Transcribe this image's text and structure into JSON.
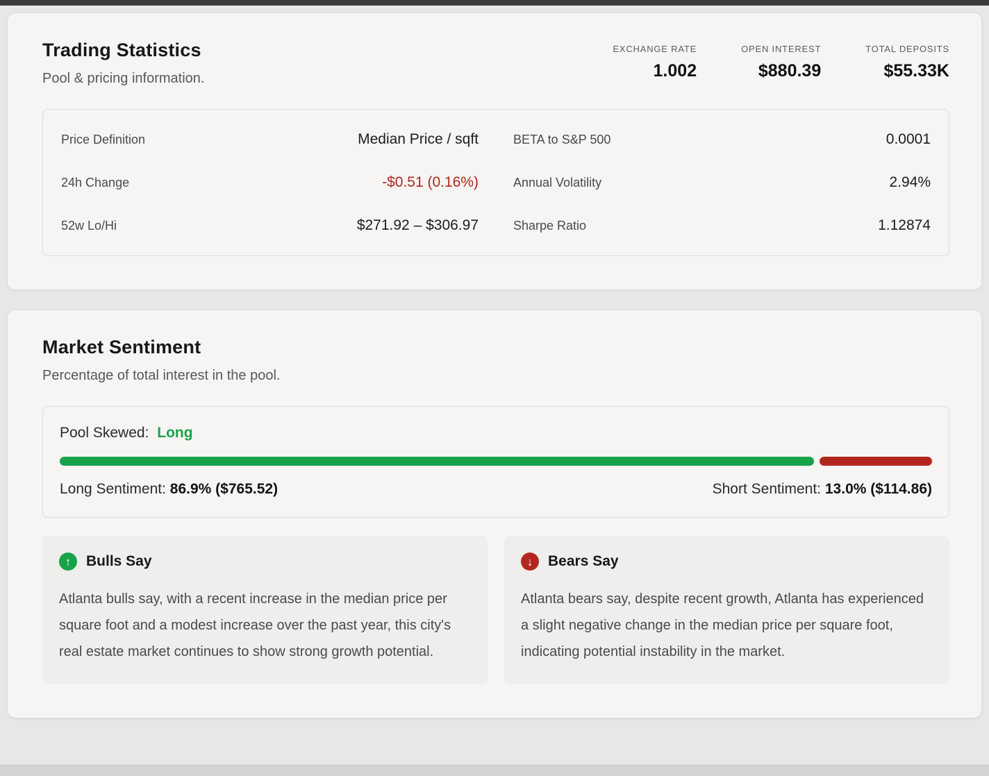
{
  "colors": {
    "green": "#16a34a",
    "red": "#b3261e"
  },
  "trading_statistics": {
    "title": "Trading Statistics",
    "subtitle": "Pool & pricing information.",
    "header_stats": [
      {
        "label": "EXCHANGE RATE",
        "value": "1.002"
      },
      {
        "label": "OPEN INTEREST",
        "value": "$880.39"
      },
      {
        "label": "TOTAL DEPOSITS",
        "value": "$55.33K"
      }
    ],
    "rows": [
      {
        "left": {
          "label": "Price Definition",
          "value": "Median Price / sqft"
        },
        "right": {
          "label": "BETA to S&P 500",
          "value": "0.0001"
        }
      },
      {
        "left": {
          "label": "24h Change",
          "value": "-$0.51 (0.16%)"
        },
        "right": {
          "label": "Annual Volatility",
          "value": "2.94%"
        }
      },
      {
        "left": {
          "label": "52w Lo/Hi",
          "value": "$271.92 – $306.97"
        },
        "right": {
          "label": "Sharpe Ratio",
          "value": "1.12874"
        }
      }
    ]
  },
  "market_sentiment": {
    "title": "Market Sentiment",
    "subtitle": "Percentage of total interest in the pool.",
    "pool_skewed_label": "Pool Skewed:",
    "pool_skewed_value": "Long",
    "long_pct": 86.9,
    "short_pct": 13.0,
    "long_label": "Long Sentiment:",
    "long_value": "86.9% ($765.52)",
    "short_label": "Short Sentiment:",
    "short_value": "13.0% ($114.86)",
    "bulls": {
      "title": "Bulls Say",
      "text": "Atlanta bulls say, with a recent increase in the median price per square foot and a modest increase over the past year, this city's real estate market continues to show strong growth potential."
    },
    "bears": {
      "title": "Bears Say",
      "text": "Atlanta bears say, despite recent growth, Atlanta has experienced a slight negative change in the median price per square foot, indicating potential instability in the market."
    }
  }
}
